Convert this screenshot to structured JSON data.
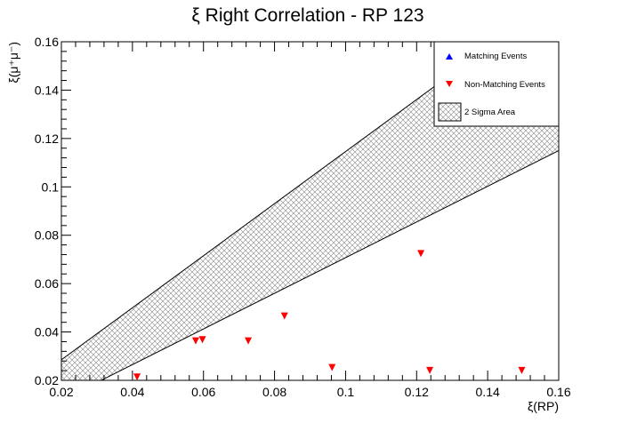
{
  "chart_data": {
    "type": "scatter",
    "title": "ξ Right Correlation - RP 123",
    "xlabel": "ξ(RP)",
    "ylabel": "ξ(μ⁺μ⁻)",
    "xlim": [
      0.02,
      0.16
    ],
    "ylim": [
      0.02,
      0.16
    ],
    "x_ticks": [
      "0.02",
      "0.04",
      "0.06",
      "0.08",
      "0.1",
      "0.12",
      "0.14",
      "0.16"
    ],
    "y_ticks": [
      "0.02",
      "0.04",
      "0.06",
      "0.08",
      "0.1",
      "0.12",
      "0.14",
      "0.16"
    ],
    "grid": false,
    "legend_position": "top-right",
    "band": {
      "name": "2 Sigma Area",
      "upper": [
        [
          0.02,
          0.0285
        ],
        [
          0.1422,
          0.16
        ]
      ],
      "lower": [
        [
          0.0312,
          0.02
        ],
        [
          0.16,
          0.115
        ]
      ]
    },
    "series": [
      {
        "name": "Matching Events",
        "marker": "triangle-up",
        "color": "#0000ff",
        "x": [],
        "y": []
      },
      {
        "name": "Non-Matching Events",
        "marker": "triangle-down",
        "color": "#ff0000",
        "x": [
          0.0413,
          0.0578,
          0.0597,
          0.0726,
          0.0828,
          0.0962,
          0.1212,
          0.1237,
          0.1496
        ],
        "y": [
          0.0214,
          0.0363,
          0.0368,
          0.0363,
          0.0466,
          0.0253,
          0.0724,
          0.0241,
          0.0241
        ]
      }
    ],
    "legend": [
      {
        "label": "Matching Events",
        "symbol": "triangle-up",
        "color": "#0000ff"
      },
      {
        "label": "Non-Matching Events",
        "symbol": "triangle-down",
        "color": "#ff0000"
      },
      {
        "label": "2 Sigma Area",
        "symbol": "hatch",
        "color": "#000000"
      }
    ]
  }
}
